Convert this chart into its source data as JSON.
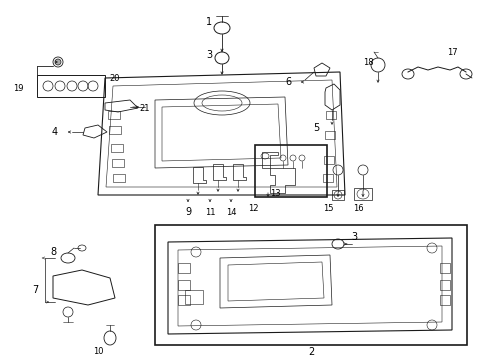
{
  "bg": "#ffffff",
  "lc": "#1a1a1a",
  "tc": "#000000",
  "fig_w": 4.89,
  "fig_h": 3.6,
  "dpi": 100,
  "fs": 6.5,
  "fs_sm": 5.5
}
